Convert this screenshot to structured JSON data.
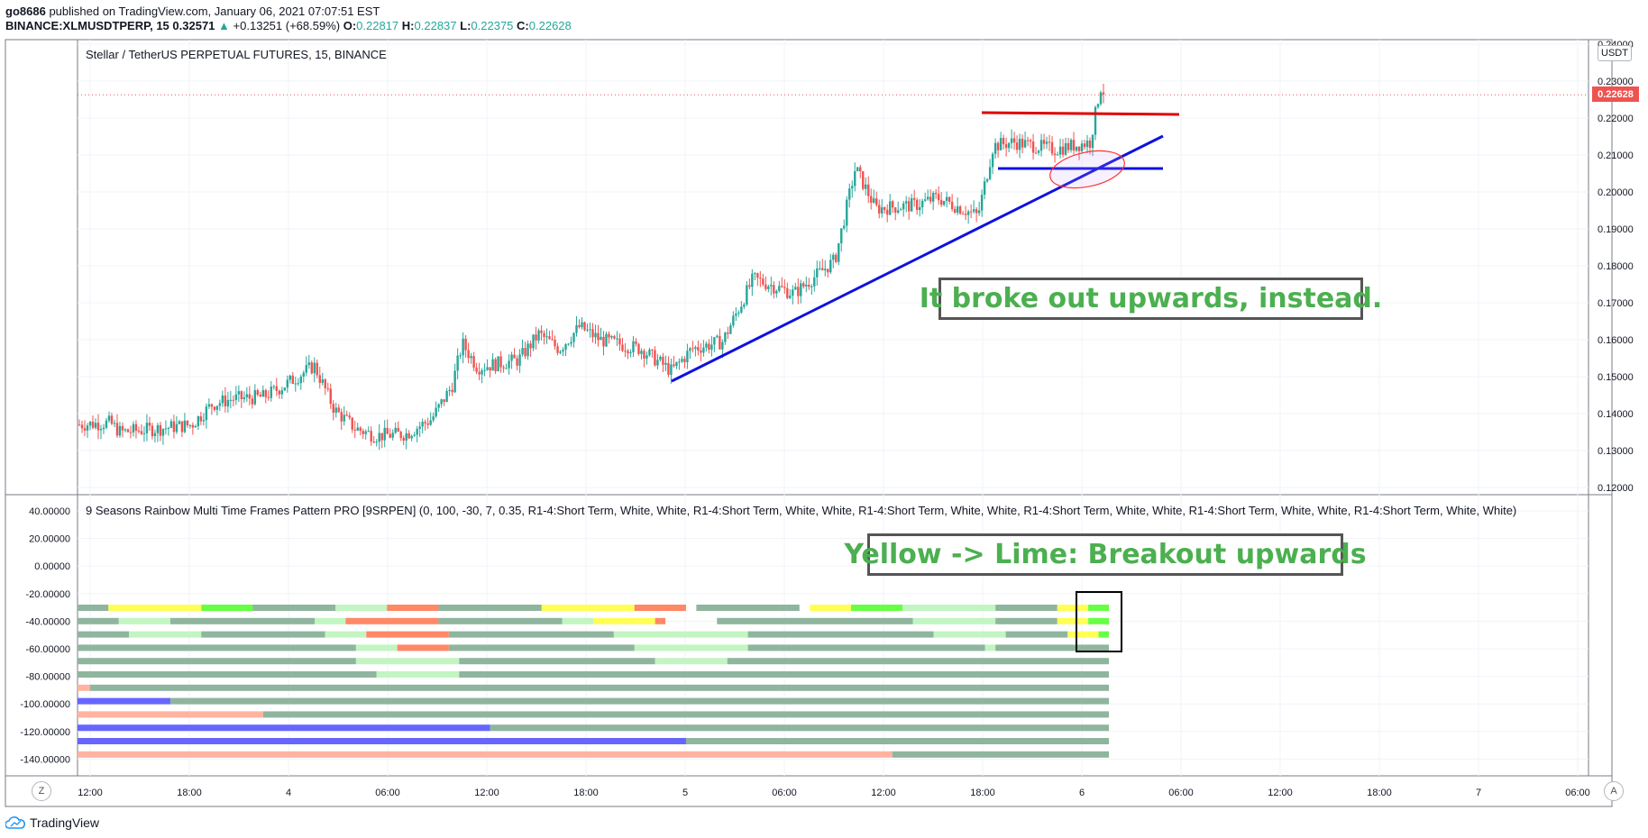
{
  "header": {
    "user": "go8686",
    "published": "published on TradingView.com, January 06, 2021 07:07:51 EST",
    "symbol": "BINANCE:XLMUSDTPERP, 15",
    "last": "0.32571",
    "change": "+0.13251 (+68.59%)",
    "o_label": "O:",
    "o": "0.22817",
    "h_label": "H:",
    "h": "0.22837",
    "l_label": "L:",
    "l": "0.22375",
    "c_label": "C:",
    "c": "0.22628"
  },
  "pane_title": "Stellar / TetherUS PERPETUAL FUTURES, 15, BINANCE",
  "currency": "USDT",
  "last_price_label": "0.22628",
  "indicator_title": "9 Seasons Rainbow Multi Time Frames Pattern PRO [9SRPEN] (0, 100, -30, 7, 0.35, R1-4:Short Term, White, White, R1-4:Short Term, White, White, R1-4:Short Term, White, White, R1-4:Short Term, White, White, R1-4:Short Term, White, White, R1-4:Short Term, White, White)",
  "annotations": {
    "main": "It broke out upwards, instead.",
    "indicator": "Yellow -> Lime: Breakout upwards"
  },
  "buttons": {
    "z": "Z",
    "a": "A"
  },
  "footer": {
    "brand": "TradingView"
  },
  "colors": {
    "up": "#26a69a",
    "down": "#ef5350",
    "trend_blue": "#1010e0",
    "resistance_red": "#e00000",
    "annotation_text": "#4caf50",
    "rainbow_gray": "#8fb59e",
    "rainbow_lime": "#66ff44",
    "rainbow_yellow": "#ffff55",
    "rainbow_salmon": "#ff8866",
    "rainbow_blue": "#6666ff"
  },
  "chart_data": {
    "type": "candlestick",
    "price_axis": [
      "0.24000",
      "0.23000",
      "0.22000",
      "0.21000",
      "0.20000",
      "0.19000",
      "0.18000",
      "0.17000",
      "0.16000",
      "0.15000",
      "0.14000",
      "0.13000",
      "0.12000"
    ],
    "ylim": [
      0.12,
      0.24
    ],
    "indicator_axis": [
      "40.00000",
      "20.00000",
      "0.00000",
      "-20.00000",
      "-40.00000",
      "-60.00000",
      "-80.00000",
      "-100.00000",
      "-120.00000",
      "-140.00000"
    ],
    "time_axis": [
      "12:00",
      "18:00",
      "4",
      "06:00",
      "12:00",
      "18:00",
      "5",
      "06:00",
      "12:00",
      "18:00",
      "6",
      "06:00",
      "12:00",
      "18:00",
      "7",
      "06:00"
    ],
    "price_path": [
      [
        0,
        0.137
      ],
      [
        0.03,
        0.1375
      ],
      [
        0.04,
        0.135
      ],
      [
        0.08,
        0.136
      ],
      [
        0.11,
        0.137
      ],
      [
        0.13,
        0.1425
      ],
      [
        0.15,
        0.144
      ],
      [
        0.18,
        0.1445
      ],
      [
        0.2,
        0.1475
      ],
      [
        0.23,
        0.153
      ],
      [
        0.25,
        0.141
      ],
      [
        0.27,
        0.136
      ],
      [
        0.29,
        0.134
      ],
      [
        0.32,
        0.1345
      ],
      [
        0.345,
        0.1385
      ],
      [
        0.365,
        0.1475
      ],
      [
        0.375,
        0.159
      ],
      [
        0.39,
        0.1525
      ],
      [
        0.43,
        0.1545
      ],
      [
        0.45,
        0.1615
      ],
      [
        0.47,
        0.1575
      ],
      [
        0.49,
        0.1635
      ],
      [
        0.51,
        0.16
      ],
      [
        0.55,
        0.1575
      ],
      [
        0.58,
        0.1515
      ],
      [
        0.6,
        0.1575
      ],
      [
        0.63,
        0.1595
      ],
      [
        0.66,
        0.1765
      ],
      [
        0.7,
        0.1725
      ],
      [
        0.74,
        0.1815
      ],
      [
        0.76,
        0.2065
      ],
      [
        0.78,
        0.1955
      ],
      [
        0.82,
        0.1965
      ],
      [
        0.84,
        0.1985
      ],
      [
        0.88,
        0.1935
      ],
      [
        0.895,
        0.2125
      ],
      [
        0.915,
        0.2135
      ],
      [
        0.955,
        0.2115
      ],
      [
        0.99,
        0.2135
      ],
      [
        1.0,
        0.2285
      ],
      [
        1.005,
        0.2265
      ]
    ],
    "rainbow_rows": [
      [
        [
          0,
          0.03,
          "g"
        ],
        [
          0.03,
          0.12,
          "y"
        ],
        [
          0.12,
          0.17,
          "l"
        ],
        [
          0.17,
          0.25,
          "g"
        ],
        [
          0.25,
          0.3,
          "p"
        ],
        [
          0.3,
          0.35,
          "s"
        ],
        [
          0.35,
          0.45,
          "g"
        ],
        [
          0.45,
          0.48,
          "y"
        ],
        [
          0.48,
          0.54,
          "y"
        ],
        [
          0.54,
          0.59,
          "s"
        ],
        [
          0.6,
          0.7,
          "g"
        ],
        [
          0.71,
          0.75,
          "y"
        ],
        [
          0.75,
          0.8,
          "l"
        ],
        [
          0.8,
          0.89,
          "p"
        ],
        [
          0.89,
          0.95,
          "g"
        ],
        [
          0.95,
          0.98,
          "y"
        ],
        [
          0.98,
          1,
          "l"
        ]
      ],
      [
        [
          0,
          0.04,
          "g"
        ],
        [
          0.04,
          0.09,
          "p"
        ],
        [
          0.09,
          0.23,
          "g"
        ],
        [
          0.23,
          0.26,
          "p"
        ],
        [
          0.26,
          0.35,
          "s"
        ],
        [
          0.35,
          0.47,
          "g"
        ],
        [
          0.47,
          0.5,
          "p"
        ],
        [
          0.5,
          0.56,
          "y"
        ],
        [
          0.56,
          0.57,
          "s"
        ],
        [
          0.62,
          0.81,
          "g"
        ],
        [
          0.81,
          0.89,
          "p"
        ],
        [
          0.89,
          0.95,
          "g"
        ],
        [
          0.95,
          0.98,
          "y"
        ],
        [
          0.98,
          1,
          "l"
        ]
      ],
      [
        [
          0,
          0.05,
          "g"
        ],
        [
          0.05,
          0.12,
          "p"
        ],
        [
          0.12,
          0.24,
          "g"
        ],
        [
          0.24,
          0.28,
          "p"
        ],
        [
          0.28,
          0.36,
          "s"
        ],
        [
          0.36,
          0.52,
          "g"
        ],
        [
          0.52,
          0.65,
          "p"
        ],
        [
          0.65,
          0.83,
          "g"
        ],
        [
          0.83,
          0.9,
          "p"
        ],
        [
          0.9,
          0.96,
          "g"
        ],
        [
          0.96,
          0.99,
          "y"
        ],
        [
          0.99,
          1,
          "l"
        ]
      ],
      [
        [
          0,
          0.27,
          "g"
        ],
        [
          0.27,
          0.31,
          "p"
        ],
        [
          0.31,
          0.36,
          "s"
        ],
        [
          0.36,
          0.54,
          "g"
        ],
        [
          0.54,
          0.65,
          "p"
        ],
        [
          0.65,
          0.88,
          "g"
        ],
        [
          0.88,
          0.89,
          "p"
        ],
        [
          0.89,
          1,
          "g"
        ]
      ],
      [
        [
          0,
          0.27,
          "g"
        ],
        [
          0.27,
          0.37,
          "p"
        ],
        [
          0.37,
          0.56,
          "g"
        ],
        [
          0.56,
          0.63,
          "p"
        ],
        [
          0.63,
          1,
          "g"
        ]
      ],
      [
        [
          0,
          0.29,
          "g"
        ],
        [
          0.29,
          0.37,
          "p"
        ],
        [
          0.37,
          1,
          "g"
        ]
      ],
      [
        [
          0,
          0.012,
          "s"
        ],
        [
          0.012,
          1,
          "g"
        ]
      ],
      [
        [
          0,
          0.09,
          "b"
        ],
        [
          0.09,
          1,
          "g"
        ]
      ],
      [
        [
          0,
          0.18,
          "s"
        ],
        [
          0.18,
          1,
          "g"
        ]
      ],
      [
        [
          0,
          0.4,
          "b"
        ],
        [
          0.4,
          1,
          "g"
        ]
      ],
      [
        [
          0,
          0.59,
          "b"
        ],
        [
          0.59,
          1,
          "g"
        ]
      ],
      [
        [
          0,
          0.79,
          "s"
        ],
        [
          0.79,
          1,
          "g"
        ]
      ]
    ]
  }
}
